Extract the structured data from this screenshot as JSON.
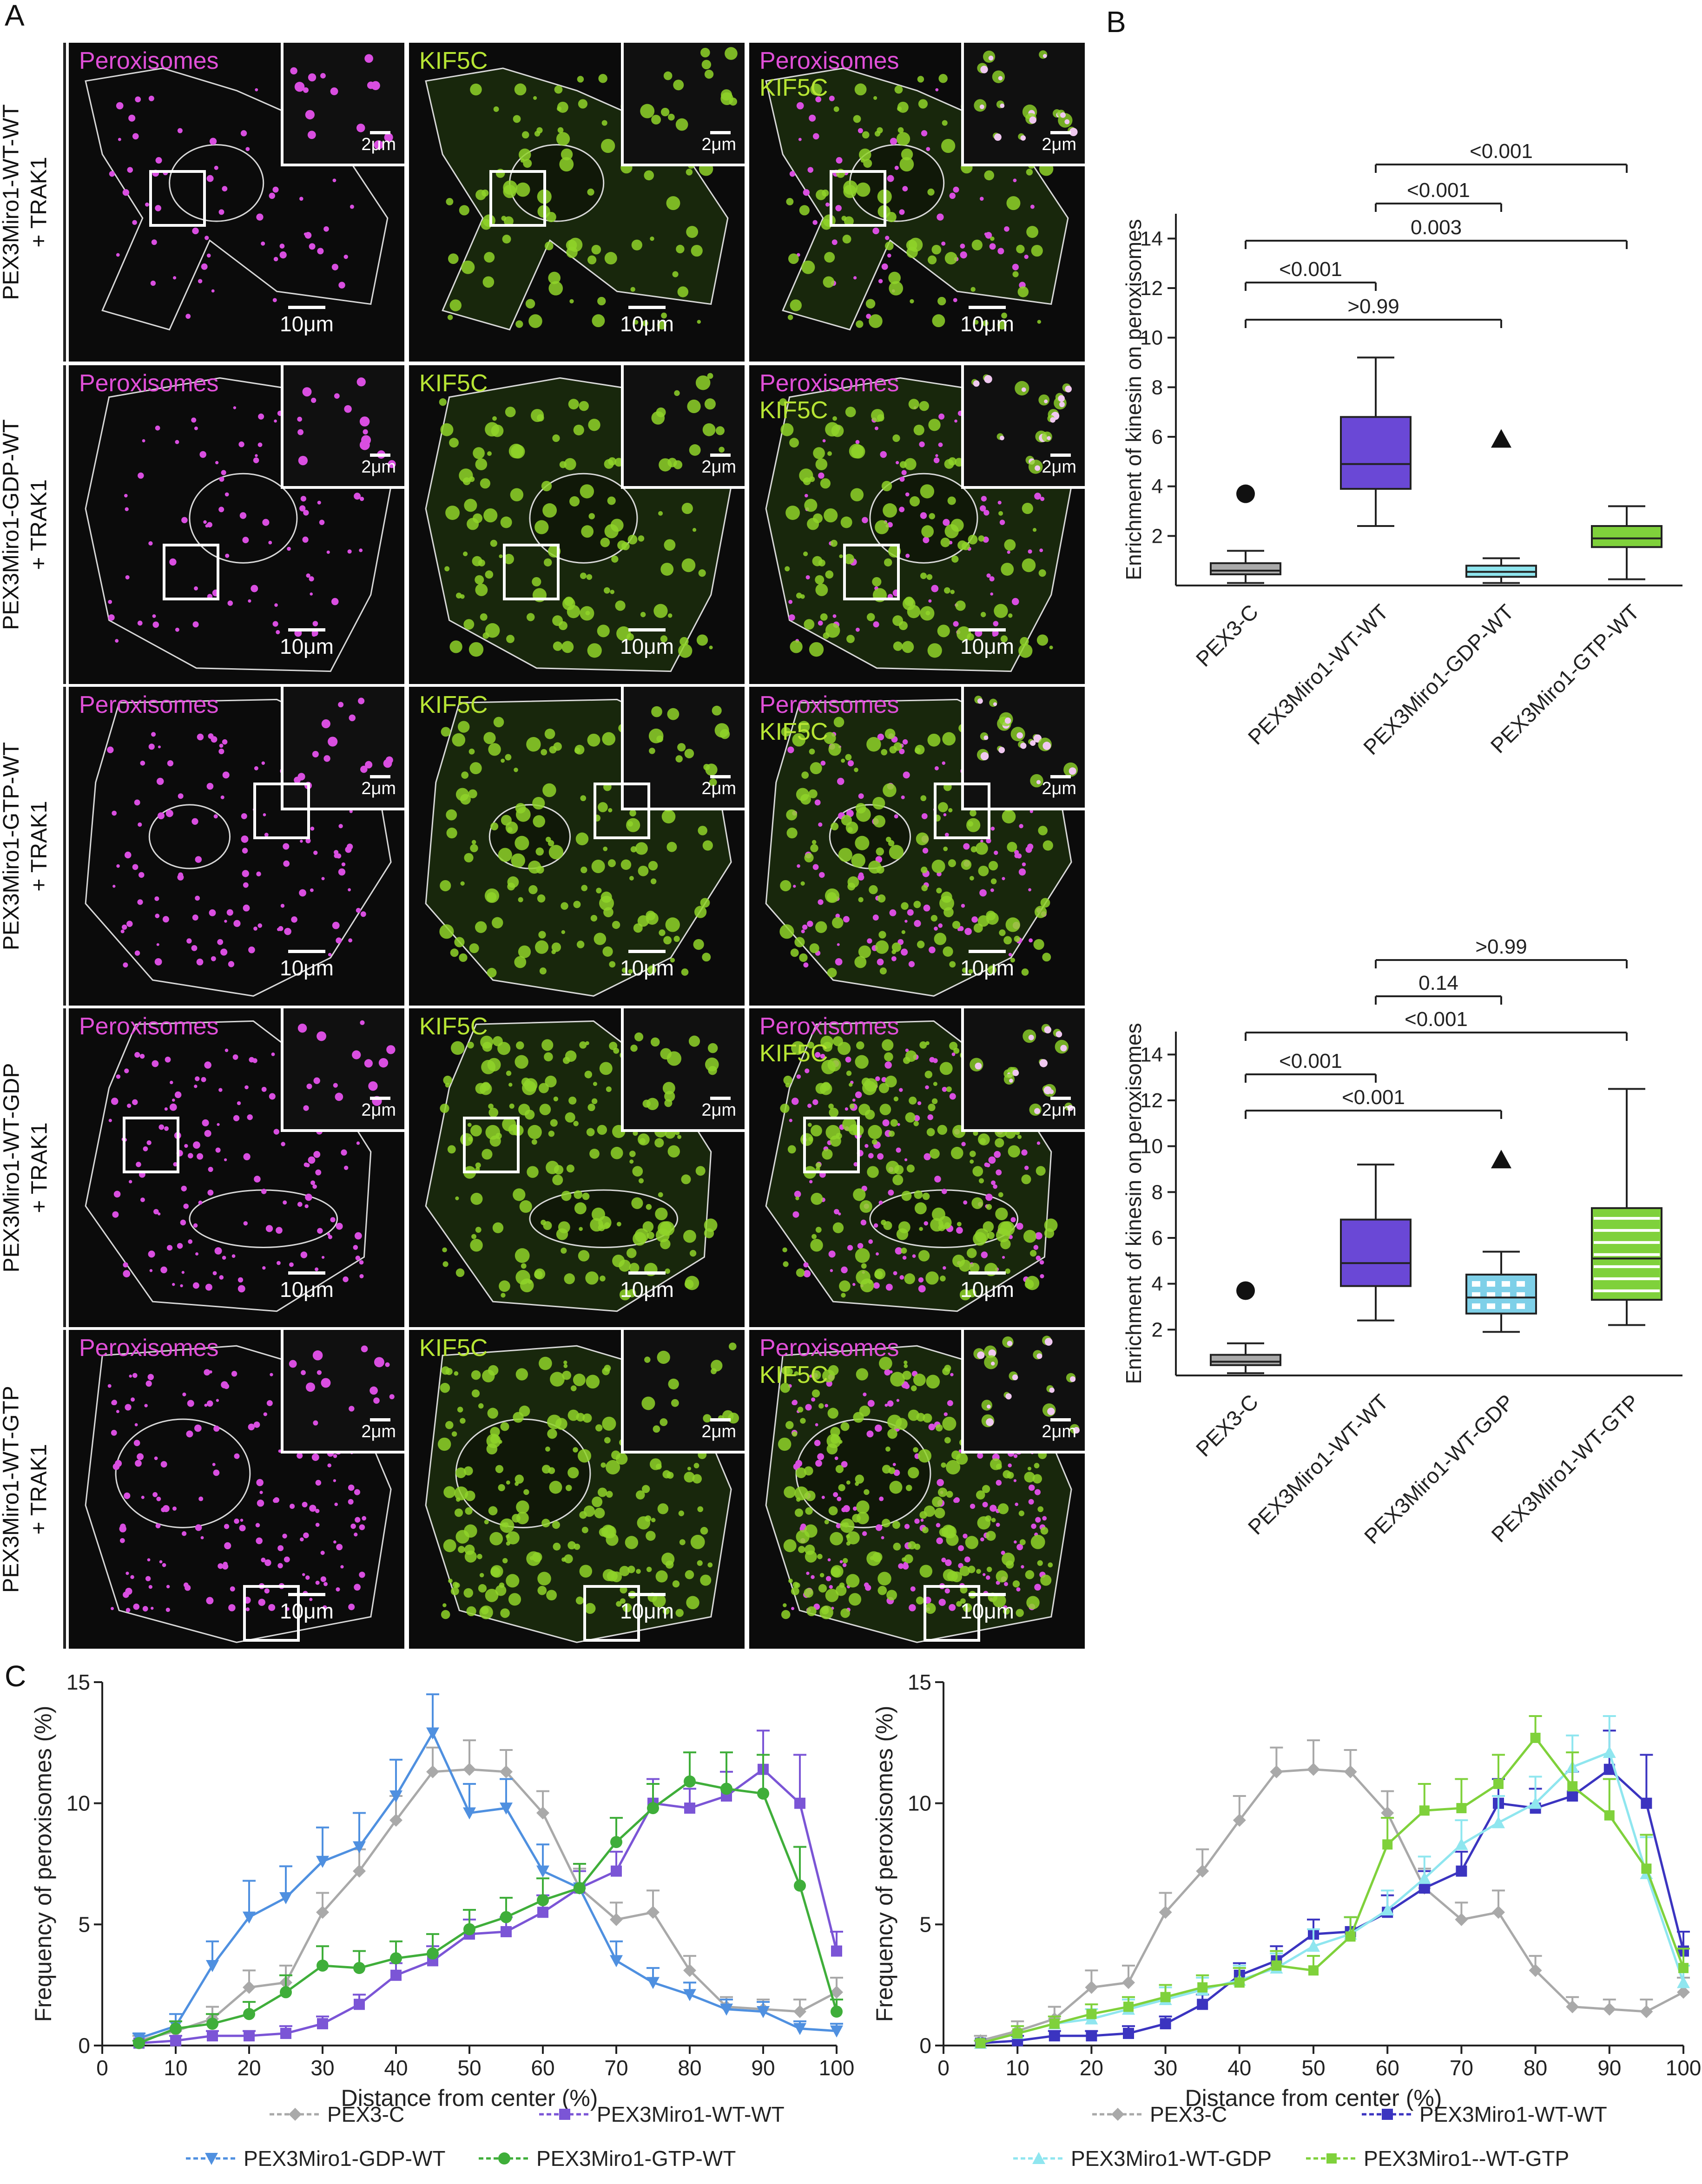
{
  "panels": {
    "a": "A",
    "b": "B",
    "c": "C"
  },
  "rows": [
    {
      "label_line1": "PEX3Miro1-WT-WT",
      "label_line2": "+ TRAK1"
    },
    {
      "label_line1": "PEX3Miro1-GDP-WT",
      "label_line2": "+ TRAK1"
    },
    {
      "label_line1": "PEX3Miro1-GTP-WT",
      "label_line2": "+ TRAK1"
    },
    {
      "label_line1": "PEX3Miro1-WT-GDP",
      "label_line2": "+ TRAK1"
    },
    {
      "label_line1": "PEX3Miro1-WT-GTP",
      "label_line2": "+ TRAK1"
    }
  ],
  "channels": {
    "peroxisomes": "Peroxisomes",
    "kinesin": "KIF5C"
  },
  "scalebars": {
    "main": "10μm",
    "inset": "2μm"
  },
  "colors": {
    "peroxisomes": "#e04fd8",
    "kinesin": "#8fd429",
    "pex3c": "#a9a9a9",
    "wtwt": "#6a48d6",
    "gdp": "#8fe6ef",
    "gtp": "#7fd13b",
    "gtp_line": "#3fae3a",
    "blue_c1": "#4f90e0"
  },
  "chart_data": [
    {
      "type": "box",
      "ylabel": "Enrichment of kinesin on peroxisomes",
      "ylim": [
        0,
        15
      ],
      "yticks": [
        2,
        4,
        6,
        8,
        10,
        12,
        14
      ],
      "categories": [
        "PEX3-C",
        "PEX3Miro1-WT-WT",
        "PEX3Miro1-GDP-WT",
        "PEX3Miro1-GTP-WT"
      ],
      "boxes": [
        {
          "min": 0.1,
          "q1": 0.45,
          "median": 0.6,
          "q3": 0.9,
          "max": 1.4,
          "outlier": 3.7,
          "outlier_marker": "circle"
        },
        {
          "min": 2.4,
          "q1": 3.9,
          "median": 4.9,
          "q3": 6.8,
          "max": 9.2
        },
        {
          "min": 0.1,
          "q1": 0.35,
          "median": 0.55,
          "q3": 0.8,
          "max": 1.1,
          "outlier": 5.9,
          "outlier_marker": "triangle"
        },
        {
          "min": 0.25,
          "q1": 1.55,
          "median": 1.9,
          "q3": 2.4,
          "max": 3.2
        }
      ],
      "comparisons": [
        {
          "from": 0,
          "to": 1,
          "label": "<0.001"
        },
        {
          "from": 0,
          "to": 2,
          "label": ">0.99"
        },
        {
          "from": 0,
          "to": 3,
          "label": "0.003"
        },
        {
          "from": 1,
          "to": 2,
          "label": "<0.001"
        },
        {
          "from": 1,
          "to": 3,
          "label": "<0.001"
        }
      ]
    },
    {
      "type": "box",
      "ylabel": "Enrichment of kinesin on peroxisomes",
      "ylim": [
        0,
        15
      ],
      "yticks": [
        2,
        4,
        6,
        8,
        10,
        12,
        14
      ],
      "categories": [
        "PEX3-C",
        "PEX3Miro1-WT-WT",
        "PEX3Miro1-WT-GDP",
        "PEX3Miro1-WT-GTP"
      ],
      "boxes": [
        {
          "min": 0.1,
          "q1": 0.45,
          "median": 0.6,
          "q3": 0.9,
          "max": 1.4,
          "outlier": 3.7,
          "outlier_marker": "circle"
        },
        {
          "min": 2.4,
          "q1": 3.9,
          "median": 4.9,
          "q3": 6.8,
          "max": 9.2
        },
        {
          "min": 1.9,
          "q1": 2.7,
          "median": 3.4,
          "q3": 4.4,
          "max": 5.4,
          "outlier": 9.4,
          "outlier_marker": "triangle"
        },
        {
          "min": 2.2,
          "q1": 3.3,
          "median": 5.1,
          "q3": 7.3,
          "max": 12.5
        }
      ],
      "comparisons": [
        {
          "from": 0,
          "to": 1,
          "label": "<0.001"
        },
        {
          "from": 0,
          "to": 2,
          "label": "<0.001"
        },
        {
          "from": 0,
          "to": 3,
          "label": "<0.001"
        },
        {
          "from": 1,
          "to": 2,
          "label": "0.14"
        },
        {
          "from": 1,
          "to": 3,
          "label": ">0.99"
        }
      ]
    },
    {
      "type": "line",
      "xlabel": "Distance from center (%)",
      "ylabel": "Frequency of peroxisomes (%)",
      "xlim": [
        0,
        100
      ],
      "ylim": [
        0,
        15
      ],
      "xticks": [
        0,
        10,
        20,
        30,
        40,
        50,
        60,
        70,
        80,
        90,
        100
      ],
      "yticks": [
        0,
        5,
        10,
        15
      ],
      "x": [
        5,
        10,
        15,
        20,
        25,
        30,
        35,
        40,
        45,
        50,
        55,
        60,
        65,
        70,
        75,
        80,
        85,
        90,
        95,
        100
      ],
      "series": [
        {
          "name": "PEX3-C",
          "marker": "diamond",
          "values": [
            0.2,
            0.6,
            1.1,
            2.4,
            2.6,
            5.5,
            7.2,
            9.3,
            11.3,
            11.4,
            11.3,
            9.6,
            6.5,
            5.2,
            5.5,
            3.1,
            1.6,
            1.5,
            1.4,
            2.2
          ],
          "err": [
            0.2,
            0.4,
            0.5,
            0.7,
            0.7,
            0.8,
            0.9,
            1.0,
            1.0,
            1.2,
            0.9,
            0.9,
            0.8,
            0.7,
            0.9,
            0.6,
            0.4,
            0.4,
            0.5,
            0.6
          ]
        },
        {
          "name": "PEX3Miro1-WT-WT",
          "marker": "square",
          "values": [
            0.1,
            0.2,
            0.4,
            0.4,
            0.5,
            0.9,
            1.7,
            2.9,
            3.5,
            4.6,
            4.7,
            5.5,
            6.5,
            7.2,
            10.0,
            9.8,
            10.3,
            11.4,
            10.0,
            3.9
          ],
          "err": [
            0.1,
            0.2,
            0.2,
            0.2,
            0.3,
            0.3,
            0.4,
            0.5,
            0.6,
            0.6,
            0.6,
            0.7,
            0.7,
            0.8,
            1.0,
            0.8,
            1.0,
            1.6,
            2.0,
            0.8
          ]
        },
        {
          "name": "PEX3Miro1-GDP-WT",
          "marker": "triangle-down",
          "values": [
            0.3,
            0.8,
            3.3,
            5.3,
            6.1,
            7.6,
            8.2,
            10.3,
            12.9,
            9.6,
            9.8,
            7.2,
            6.5,
            3.5,
            2.6,
            2.1,
            1.5,
            1.4,
            0.7,
            0.6
          ],
          "err": [
            0.2,
            0.5,
            1.0,
            1.5,
            1.3,
            1.4,
            1.4,
            1.5,
            1.6,
            1.2,
            1.2,
            1.1,
            1.0,
            0.8,
            0.6,
            0.5,
            0.4,
            0.4,
            0.3,
            0.3
          ]
        },
        {
          "name": "PEX3Miro1-GTP-WT",
          "marker": "circle",
          "values": [
            0.1,
            0.7,
            0.9,
            1.3,
            2.2,
            3.3,
            3.2,
            3.6,
            3.8,
            4.8,
            5.3,
            6.0,
            6.5,
            8.4,
            9.8,
            10.9,
            10.6,
            10.4,
            6.6,
            1.4
          ],
          "err": [
            0.1,
            0.3,
            0.4,
            0.5,
            0.7,
            0.8,
            0.7,
            0.7,
            0.8,
            0.8,
            0.8,
            0.9,
            1.0,
            1.0,
            1.0,
            1.2,
            1.5,
            1.6,
            1.6,
            0.5
          ]
        }
      ],
      "legend": [
        "PEX3-C",
        "PEX3Miro1-WT-WT",
        "PEX3Miro1-GDP-WT",
        "PEX3Miro1-GTP-WT"
      ]
    },
    {
      "type": "line",
      "xlabel": "Distance from center (%)",
      "ylabel": "Frequency of peroxisomes (%)",
      "xlim": [
        0,
        100
      ],
      "ylim": [
        0,
        15
      ],
      "xticks": [
        0,
        10,
        20,
        30,
        40,
        50,
        60,
        70,
        80,
        90,
        100
      ],
      "yticks": [
        0,
        5,
        10,
        15
      ],
      "x": [
        5,
        10,
        15,
        20,
        25,
        30,
        35,
        40,
        45,
        50,
        55,
        60,
        65,
        70,
        75,
        80,
        85,
        90,
        95,
        100
      ],
      "series": [
        {
          "name": "PEX3-C",
          "marker": "diamond",
          "values": [
            0.2,
            0.6,
            1.1,
            2.4,
            2.6,
            5.5,
            7.2,
            9.3,
            11.3,
            11.4,
            11.3,
            9.6,
            6.5,
            5.2,
            5.5,
            3.1,
            1.6,
            1.5,
            1.4,
            2.2
          ],
          "err": [
            0.2,
            0.4,
            0.5,
            0.7,
            0.7,
            0.8,
            0.9,
            1.0,
            1.0,
            1.2,
            0.9,
            0.9,
            0.8,
            0.7,
            0.9,
            0.6,
            0.4,
            0.4,
            0.5,
            0.6
          ]
        },
        {
          "name": "PEX3Miro1-WT-WT",
          "marker": "square",
          "values": [
            0.1,
            0.2,
            0.4,
            0.4,
            0.5,
            0.9,
            1.7,
            2.9,
            3.5,
            4.6,
            4.7,
            5.5,
            6.5,
            7.2,
            10.0,
            9.8,
            10.3,
            11.4,
            10.0,
            3.9
          ],
          "err": [
            0.1,
            0.2,
            0.2,
            0.2,
            0.3,
            0.3,
            0.4,
            0.5,
            0.6,
            0.6,
            0.6,
            0.7,
            0.7,
            0.8,
            1.0,
            0.8,
            1.0,
            1.6,
            2.0,
            0.8
          ]
        },
        {
          "name": "PEX3Miro1-WT-GDP",
          "marker": "triangle-up",
          "values": [
            0.1,
            0.5,
            0.9,
            1.1,
            1.5,
            1.9,
            2.3,
            2.7,
            3.2,
            4.1,
            4.6,
            5.6,
            6.9,
            8.3,
            9.2,
            10.0,
            11.5,
            12.1,
            7.1,
            2.6
          ],
          "err": [
            0.1,
            0.3,
            0.3,
            0.4,
            0.4,
            0.5,
            0.5,
            0.6,
            0.6,
            0.7,
            0.7,
            0.8,
            0.9,
            1.0,
            1.1,
            1.1,
            1.3,
            1.5,
            1.5,
            0.7
          ]
        },
        {
          "name": "PEX3Miro1--WT-GTP",
          "marker": "square-small",
          "values": [
            0.1,
            0.5,
            0.9,
            1.3,
            1.6,
            2.0,
            2.4,
            2.6,
            3.3,
            3.1,
            4.5,
            8.3,
            9.7,
            9.8,
            10.8,
            12.7,
            10.7,
            9.5,
            7.3,
            3.2
          ],
          "err": [
            0.1,
            0.3,
            0.3,
            0.4,
            0.4,
            0.5,
            0.5,
            0.6,
            0.6,
            0.6,
            0.8,
            1.1,
            1.1,
            1.2,
            1.2,
            0.9,
            1.4,
            1.5,
            1.4,
            0.8
          ]
        }
      ],
      "legend": [
        "PEX3-C",
        "PEX3Miro1-WT-WT",
        "PEX3Miro1-WT-GDP",
        "PEX3Miro1--WT-GTP"
      ]
    }
  ]
}
